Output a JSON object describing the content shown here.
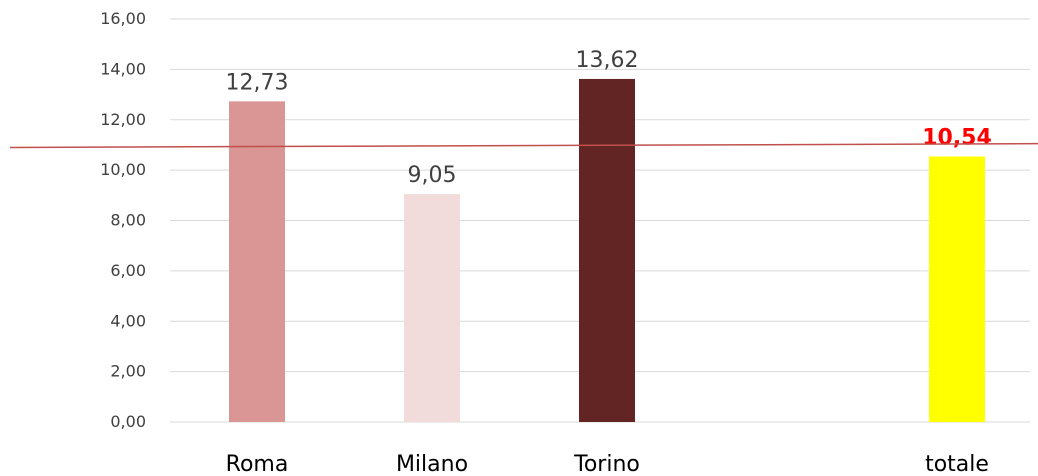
{
  "chart_data": {
    "type": "bar",
    "categories": [
      "Roma",
      "Milano",
      "Torino",
      "totale"
    ],
    "values": [
      12.73,
      9.05,
      13.62,
      10.54
    ],
    "data_labels": [
      "12,73",
      "9,05",
      "13,62",
      "10,54"
    ],
    "bar_colors": [
      "#d99694",
      "#f2dcdb",
      "#632523",
      "#ffff00"
    ],
    "data_label_colors": [
      "#404040",
      "#404040",
      "#404040",
      "#ff0000"
    ],
    "data_label_bold": [
      false,
      false,
      false,
      true
    ],
    "ylim": [
      0,
      16
    ],
    "yticks": [
      0,
      2,
      4,
      6,
      8,
      10,
      12,
      14,
      16
    ],
    "ytick_labels": [
      "0,00",
      "2,00",
      "4,00",
      "6,00",
      "8,00",
      "10,00",
      "12,00",
      "14,00",
      "16,00"
    ],
    "reference_line": {
      "color": "#c0504d",
      "start_value": 10.9,
      "end_value": 11.05
    },
    "gridlines": true,
    "legend": "none",
    "title": "",
    "xlabel": "",
    "ylabel": ""
  }
}
